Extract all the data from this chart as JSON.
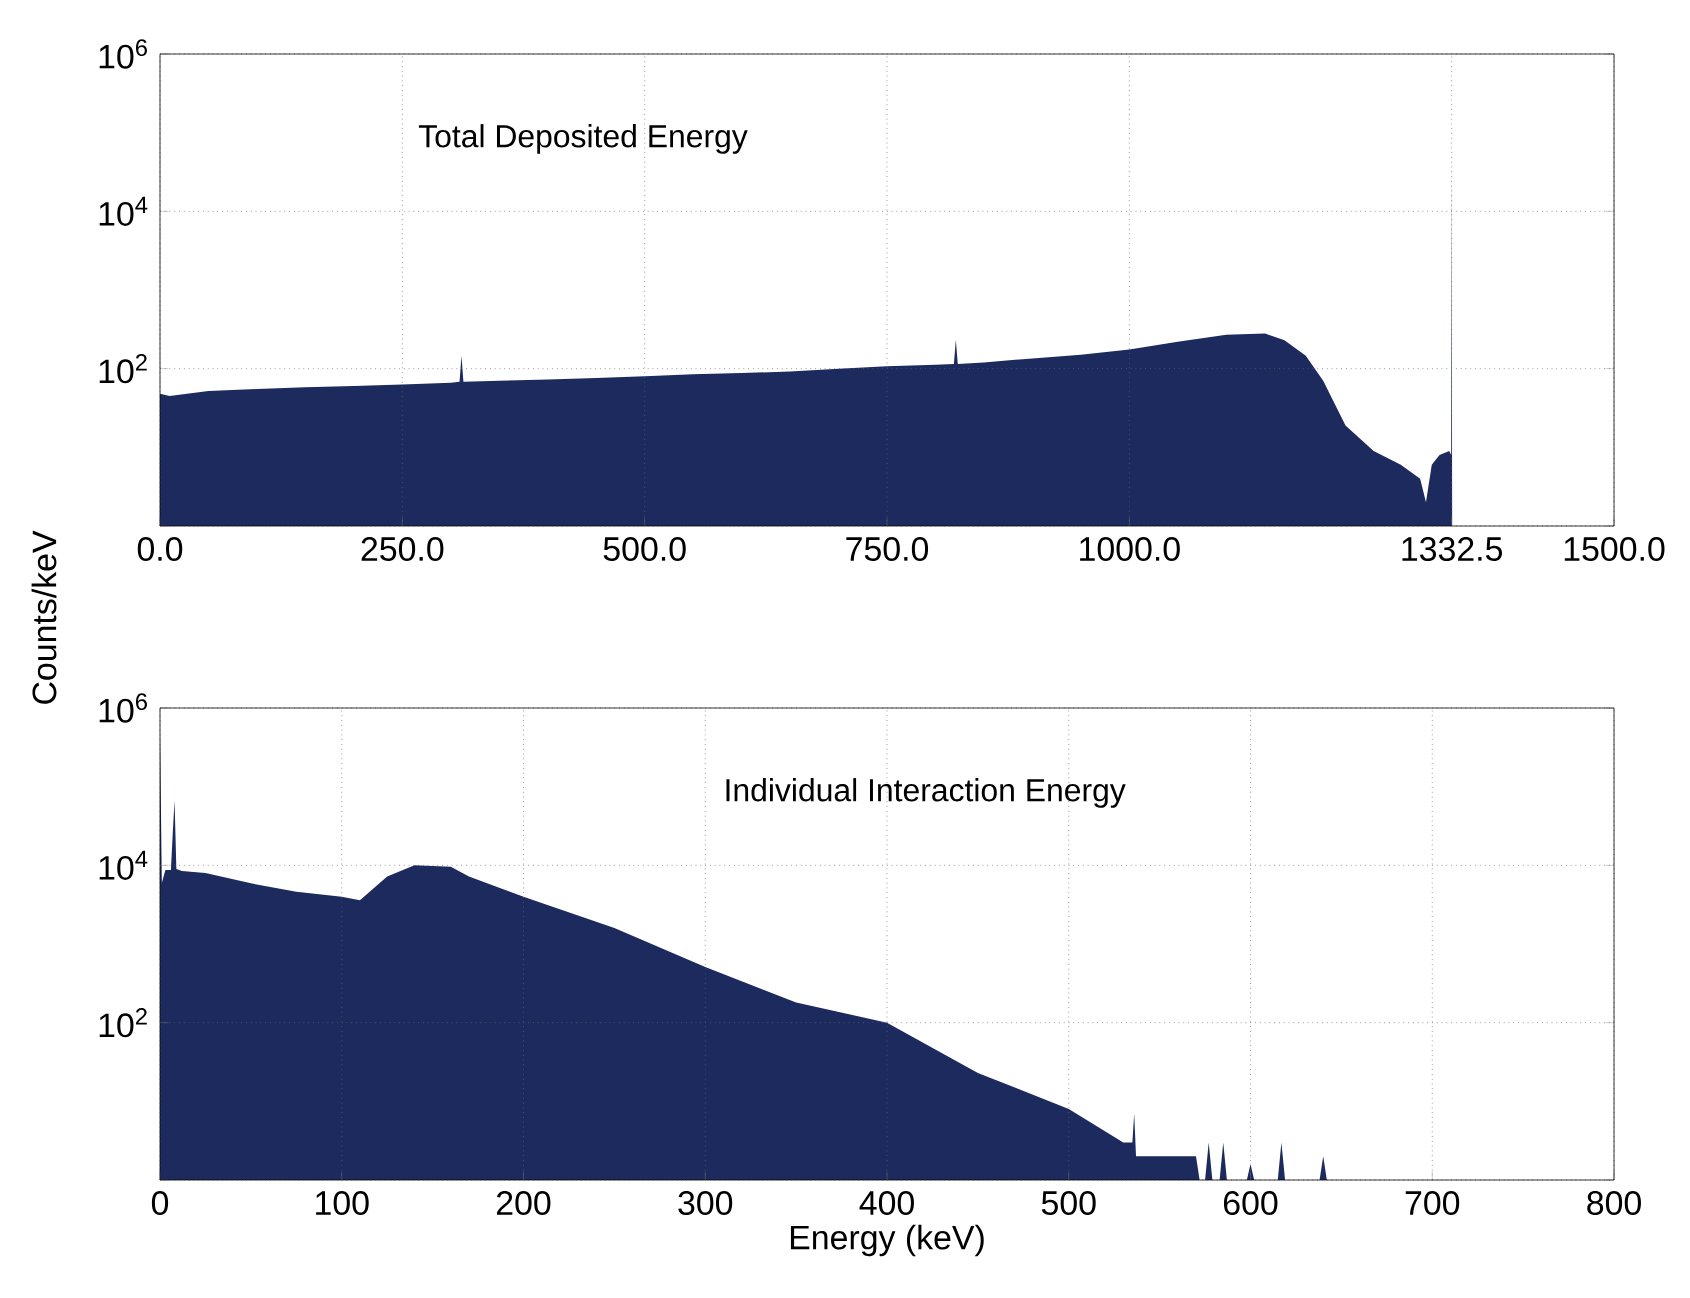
{
  "chart_data": [
    {
      "type": "area",
      "ylabel": "Counts/keV",
      "annotations": [
        "Total Deposited Energy"
      ],
      "log": true,
      "grid": true,
      "xlim": [
        0,
        1500
      ],
      "ylim": [
        1,
        1000000
      ],
      "xticks": [
        {
          "value": 0,
          "label": "0.0"
        },
        {
          "value": 250,
          "label": "250.0"
        },
        {
          "value": 500,
          "label": "500.0"
        },
        {
          "value": 750,
          "label": "750.0"
        },
        {
          "value": 1000,
          "label": "1000.0"
        },
        1332.5,
        {
          "value": 1500,
          "label": "1500.0"
        }
      ],
      "yticks": [
        {
          "value": 1,
          "label": null
        },
        {
          "value": 100,
          "label": "10$^{2}$"
        },
        {
          "value": 10000,
          "label": "10$^{4}$"
        },
        {
          "value": 1000000,
          "label": "10$^{6}$"
        }
      ],
      "series": [
        {
          "color": "#1c2a5e",
          "x": [
            0,
            10,
            50,
            100,
            150,
            200,
            250,
            300,
            309,
            311,
            313,
            350,
            400,
            450,
            500,
            550,
            600,
            650,
            700,
            750,
            800,
            819,
            821,
            823,
            850,
            900,
            950,
            1000,
            1050,
            1100,
            1140,
            1160,
            1182,
            1200,
            1223,
            1252,
            1280,
            1300,
            1306,
            1312,
            1320,
            1330,
            1332,
            1332.5,
            1333
          ],
          "values": [
            48,
            45,
            52,
            55,
            58,
            60,
            63,
            66,
            68,
            146,
            68,
            70,
            73,
            76,
            80,
            85,
            88,
            92,
            100,
            107,
            112,
            115,
            233,
            115,
            120,
            135,
            150,
            175,
            220,
            270,
            280,
            230,
            146,
            70,
            19,
            9,
            6,
            4,
            2,
            6,
            8,
            9,
            8,
            45000,
            1
          ]
        }
      ]
    },
    {
      "type": "area",
      "xlabel": "Energy (keV)",
      "annotations": [
        "Individual Interaction Energy"
      ],
      "log": true,
      "grid": true,
      "xlim": [
        0,
        800
      ],
      "ylim": [
        1,
        1000000
      ],
      "xticks": [
        0,
        100,
        200,
        300,
        400,
        500,
        600,
        700,
        800
      ],
      "yticks": [
        {
          "value": 1,
          "label": null
        },
        {
          "value": 100,
          "label": "10$^{2}$"
        },
        {
          "value": 10000,
          "label": "10$^{4}$"
        },
        {
          "value": 1000000,
          "label": "10$^{6}$"
        }
      ],
      "series": [
        {
          "color": "#1c2a5e",
          "x": [
            0,
            1,
            3,
            6,
            7,
            8,
            9,
            12,
            25,
            50,
            75,
            100,
            110,
            125,
            140,
            160,
            170,
            200,
            250,
            300,
            350,
            400,
            450,
            500,
            530,
            535,
            536,
            537,
            570,
            572,
            575,
            577,
            579,
            583,
            585,
            587,
            598,
            600,
            602,
            615,
            617,
            619,
            638,
            640,
            642
          ],
          "values": [
            500000,
            6000,
            8700,
            8700,
            25000,
            67000,
            9000,
            8500,
            8000,
            5900,
            4600,
            4000,
            3600,
            7200,
            10000,
            9600,
            7200,
            4000,
            1600,
            510,
            180,
            100,
            23,
            8,
            3,
            3,
            7,
            2,
            2,
            1,
            1,
            3,
            1,
            1,
            3,
            1,
            1,
            1.6,
            1,
            1,
            3,
            1,
            1,
            2,
            1
          ]
        }
      ]
    }
  ]
}
